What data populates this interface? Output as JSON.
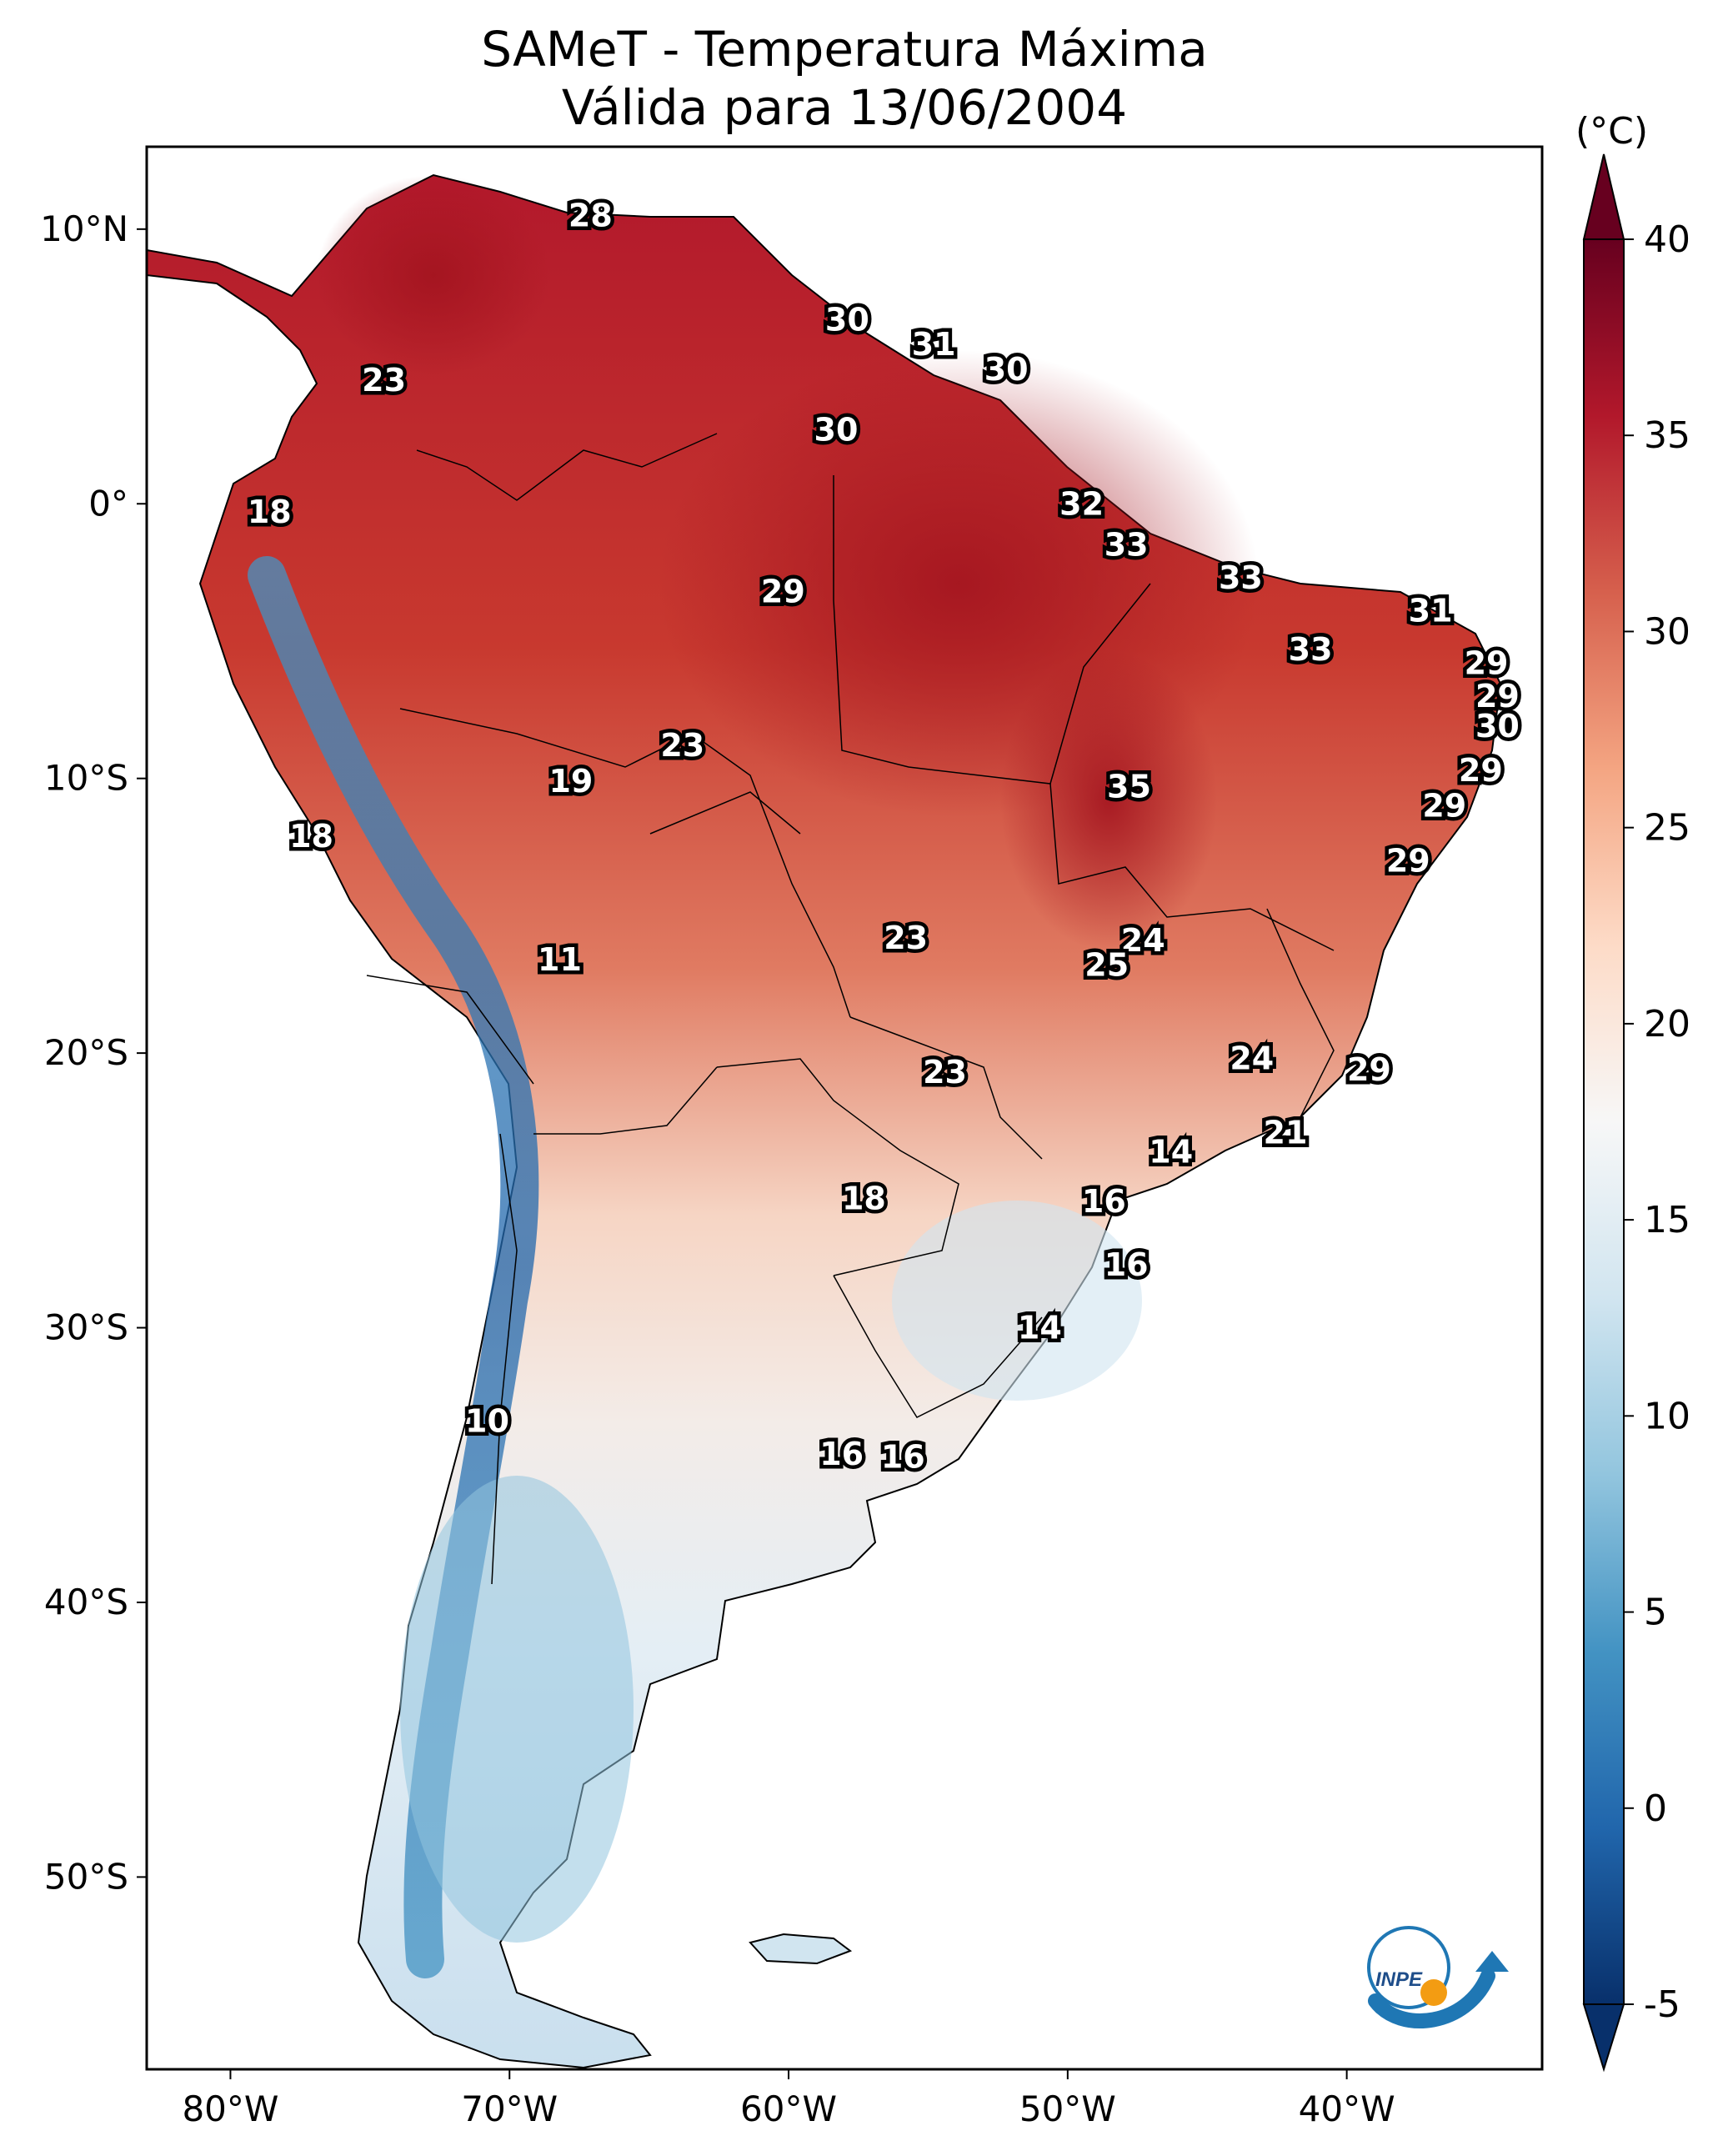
{
  "title": {
    "line1": "SAMeT - Temperatura Máxima",
    "line2": "Válida para 13/06/2004"
  },
  "axes": {
    "lon_ticks": [
      "80°W",
      "70°W",
      "60°W",
      "50°W",
      "40°W"
    ],
    "lat_ticks": [
      "10°N",
      "0°",
      "10°S",
      "20°S",
      "30°S",
      "40°S",
      "50°S"
    ],
    "extent": {
      "lon": [
        -83,
        -33
      ],
      "lat": [
        -57,
        13
      ]
    }
  },
  "colorbar": {
    "unit": "(°C)",
    "ticks": [
      "40",
      "35",
      "30",
      "25",
      "20",
      "15",
      "10",
      "5",
      "0",
      "-5"
    ],
    "range": [
      -5,
      40
    ],
    "colors": [
      "#08306b",
      "#2166ac",
      "#4393c3",
      "#92c5de",
      "#d1e5f0",
      "#f7f7f7",
      "#fddbc7",
      "#f4a582",
      "#d6604d",
      "#b2182b",
      "#67001f"
    ]
  },
  "values": [
    {
      "v": "28",
      "lon": -67.1,
      "lat": 10.5
    },
    {
      "v": "23",
      "lon": -74.5,
      "lat": 4.5
    },
    {
      "v": "30",
      "lon": -57.9,
      "lat": 6.7
    },
    {
      "v": "31",
      "lon": -54.8,
      "lat": 5.8
    },
    {
      "v": "30",
      "lon": -52.2,
      "lat": 4.9
    },
    {
      "v": "30",
      "lon": -58.3,
      "lat": 2.7
    },
    {
      "v": "18",
      "lon": -78.6,
      "lat": -0.3
    },
    {
      "v": "32",
      "lon": -49.5,
      "lat": 0.0
    },
    {
      "v": "33",
      "lon": -47.9,
      "lat": -1.5
    },
    {
      "v": "29",
      "lon": -60.2,
      "lat": -3.2
    },
    {
      "v": "33",
      "lon": -43.8,
      "lat": -2.7
    },
    {
      "v": "31",
      "lon": -37.0,
      "lat": -3.9
    },
    {
      "v": "33",
      "lon": -41.3,
      "lat": -5.3
    },
    {
      "v": "29",
      "lon": -35.0,
      "lat": -5.8
    },
    {
      "v": "29",
      "lon": -34.6,
      "lat": -7.0
    },
    {
      "v": "30",
      "lon": -34.6,
      "lat": -8.1
    },
    {
      "v": "23",
      "lon": -63.8,
      "lat": -8.8
    },
    {
      "v": "29",
      "lon": -35.2,
      "lat": -9.7
    },
    {
      "v": "19",
      "lon": -67.8,
      "lat": -10.1
    },
    {
      "v": "35",
      "lon": -47.8,
      "lat": -10.3
    },
    {
      "v": "29",
      "lon": -36.5,
      "lat": -11.0
    },
    {
      "v": "18",
      "lon": -77.1,
      "lat": -12.1
    },
    {
      "v": "29",
      "lon": -37.8,
      "lat": -13.0
    },
    {
      "v": "23",
      "lon": -55.8,
      "lat": -15.8
    },
    {
      "v": "24",
      "lon": -47.3,
      "lat": -15.9
    },
    {
      "v": "25",
      "lon": -48.6,
      "lat": -16.8
    },
    {
      "v": "11",
      "lon": -68.2,
      "lat": -16.6
    },
    {
      "v": "24",
      "lon": -43.4,
      "lat": -20.2
    },
    {
      "v": "23",
      "lon": -54.4,
      "lat": -20.7
    },
    {
      "v": "29",
      "lon": -39.2,
      "lat": -20.6
    },
    {
      "v": "21",
      "lon": -42.2,
      "lat": -22.9
    },
    {
      "v": "14",
      "lon": -46.3,
      "lat": -23.6
    },
    {
      "v": "18",
      "lon": -57.3,
      "lat": -25.3
    },
    {
      "v": "16",
      "lon": -48.7,
      "lat": -25.4
    },
    {
      "v": "16",
      "lon": -47.9,
      "lat": -27.7
    },
    {
      "v": "14",
      "lon": -51.0,
      "lat": -30.0
    },
    {
      "v": "10",
      "lon": -70.8,
      "lat": -33.4
    },
    {
      "v": "16",
      "lon": -58.1,
      "lat": -34.6
    },
    {
      "v": "16",
      "lon": -55.9,
      "lat": -34.7
    }
  ]
}
